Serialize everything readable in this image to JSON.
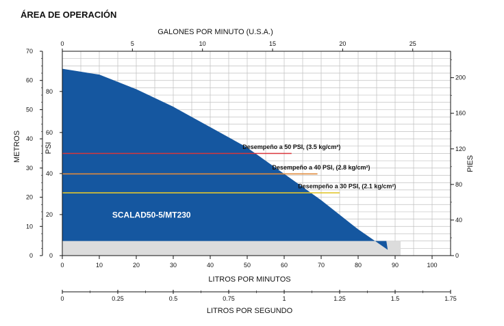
{
  "section_title": "ÁREA DE OPERACIÓN",
  "colors": {
    "area_fill": "#1557a0",
    "min_band": "#dcdcdc",
    "grid": "#bfbfbf",
    "line_50psi": "#d9363a",
    "line_40psi": "#e08a3c",
    "line_30psi": "#e2c62e"
  },
  "chart_data": {
    "type": "area",
    "series": [
      {
        "name": "SCALAD50-5/MT230",
        "x_unit": "LITROS POR MINUTOS",
        "y_unit": "METROS",
        "x": [
          0,
          10,
          20,
          30,
          40,
          50,
          60,
          70,
          80,
          88
        ],
        "y": [
          64,
          62,
          57,
          51,
          44,
          37,
          28,
          19,
          9,
          2
        ]
      }
    ],
    "min_band_y": 5,
    "annotations": [
      {
        "label": "Desempeño a 50 PSI, (3.5 kg/cm²)",
        "y_m": 35,
        "x_end": 62
      },
      {
        "label": "Desempeño a 40 PSI, (2.8 kg/cm²)",
        "y_m": 28,
        "x_end": 69
      },
      {
        "label": "Desempeño a 30 PSI, (2.1 kg/cm²)",
        "y_m": 21.5,
        "x_end": 75
      }
    ],
    "axes": {
      "bottom": {
        "label": "LITROS POR MINUTOS",
        "range": [
          0,
          105
        ],
        "ticks": [
          0,
          10,
          20,
          30,
          40,
          50,
          60,
          70,
          80,
          90,
          100
        ]
      },
      "top": {
        "label": "GALONES POR MINUTO (U.S.A.)",
        "range": [
          0,
          27.7
        ],
        "ticks": [
          0,
          5,
          10,
          15,
          20,
          25
        ]
      },
      "left_metros": {
        "label": "METROS",
        "range": [
          0,
          70
        ],
        "ticks": [
          0,
          10,
          20,
          30,
          40,
          50,
          60,
          70
        ]
      },
      "left_psi": {
        "label": "PSI",
        "range": [
          0,
          99.6
        ],
        "ticks": [
          0,
          20,
          40,
          60,
          80
        ]
      },
      "right_pies": {
        "label": "PIES",
        "range": [
          0,
          229.7
        ],
        "ticks": [
          0,
          40,
          80,
          120,
          160,
          200
        ]
      },
      "lps": {
        "label": "LITROS POR SEGUNDO",
        "range": [
          0,
          1.75
        ],
        "ticks": [
          "0",
          "0.25",
          "0.5",
          "0.75",
          "1",
          "1.25",
          "1.5",
          "1.75"
        ]
      }
    },
    "grid": true
  }
}
